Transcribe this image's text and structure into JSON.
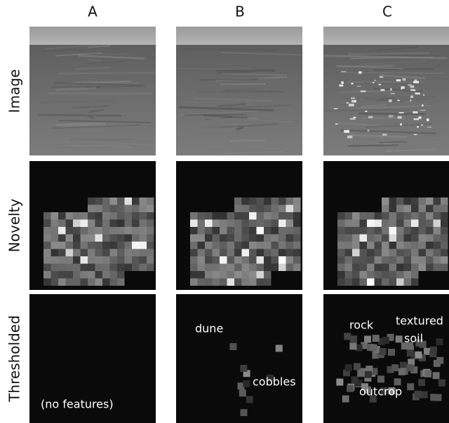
{
  "columns": [
    "A",
    "B",
    "C"
  ],
  "rows": [
    "Image",
    "Novelty",
    "Thresholded"
  ],
  "annotations": {
    "A": [
      "(no features)"
    ],
    "B": [
      "dune",
      "cobbles"
    ],
    "C": [
      "rock",
      "textured",
      "soil",
      "outcrop"
    ]
  }
}
